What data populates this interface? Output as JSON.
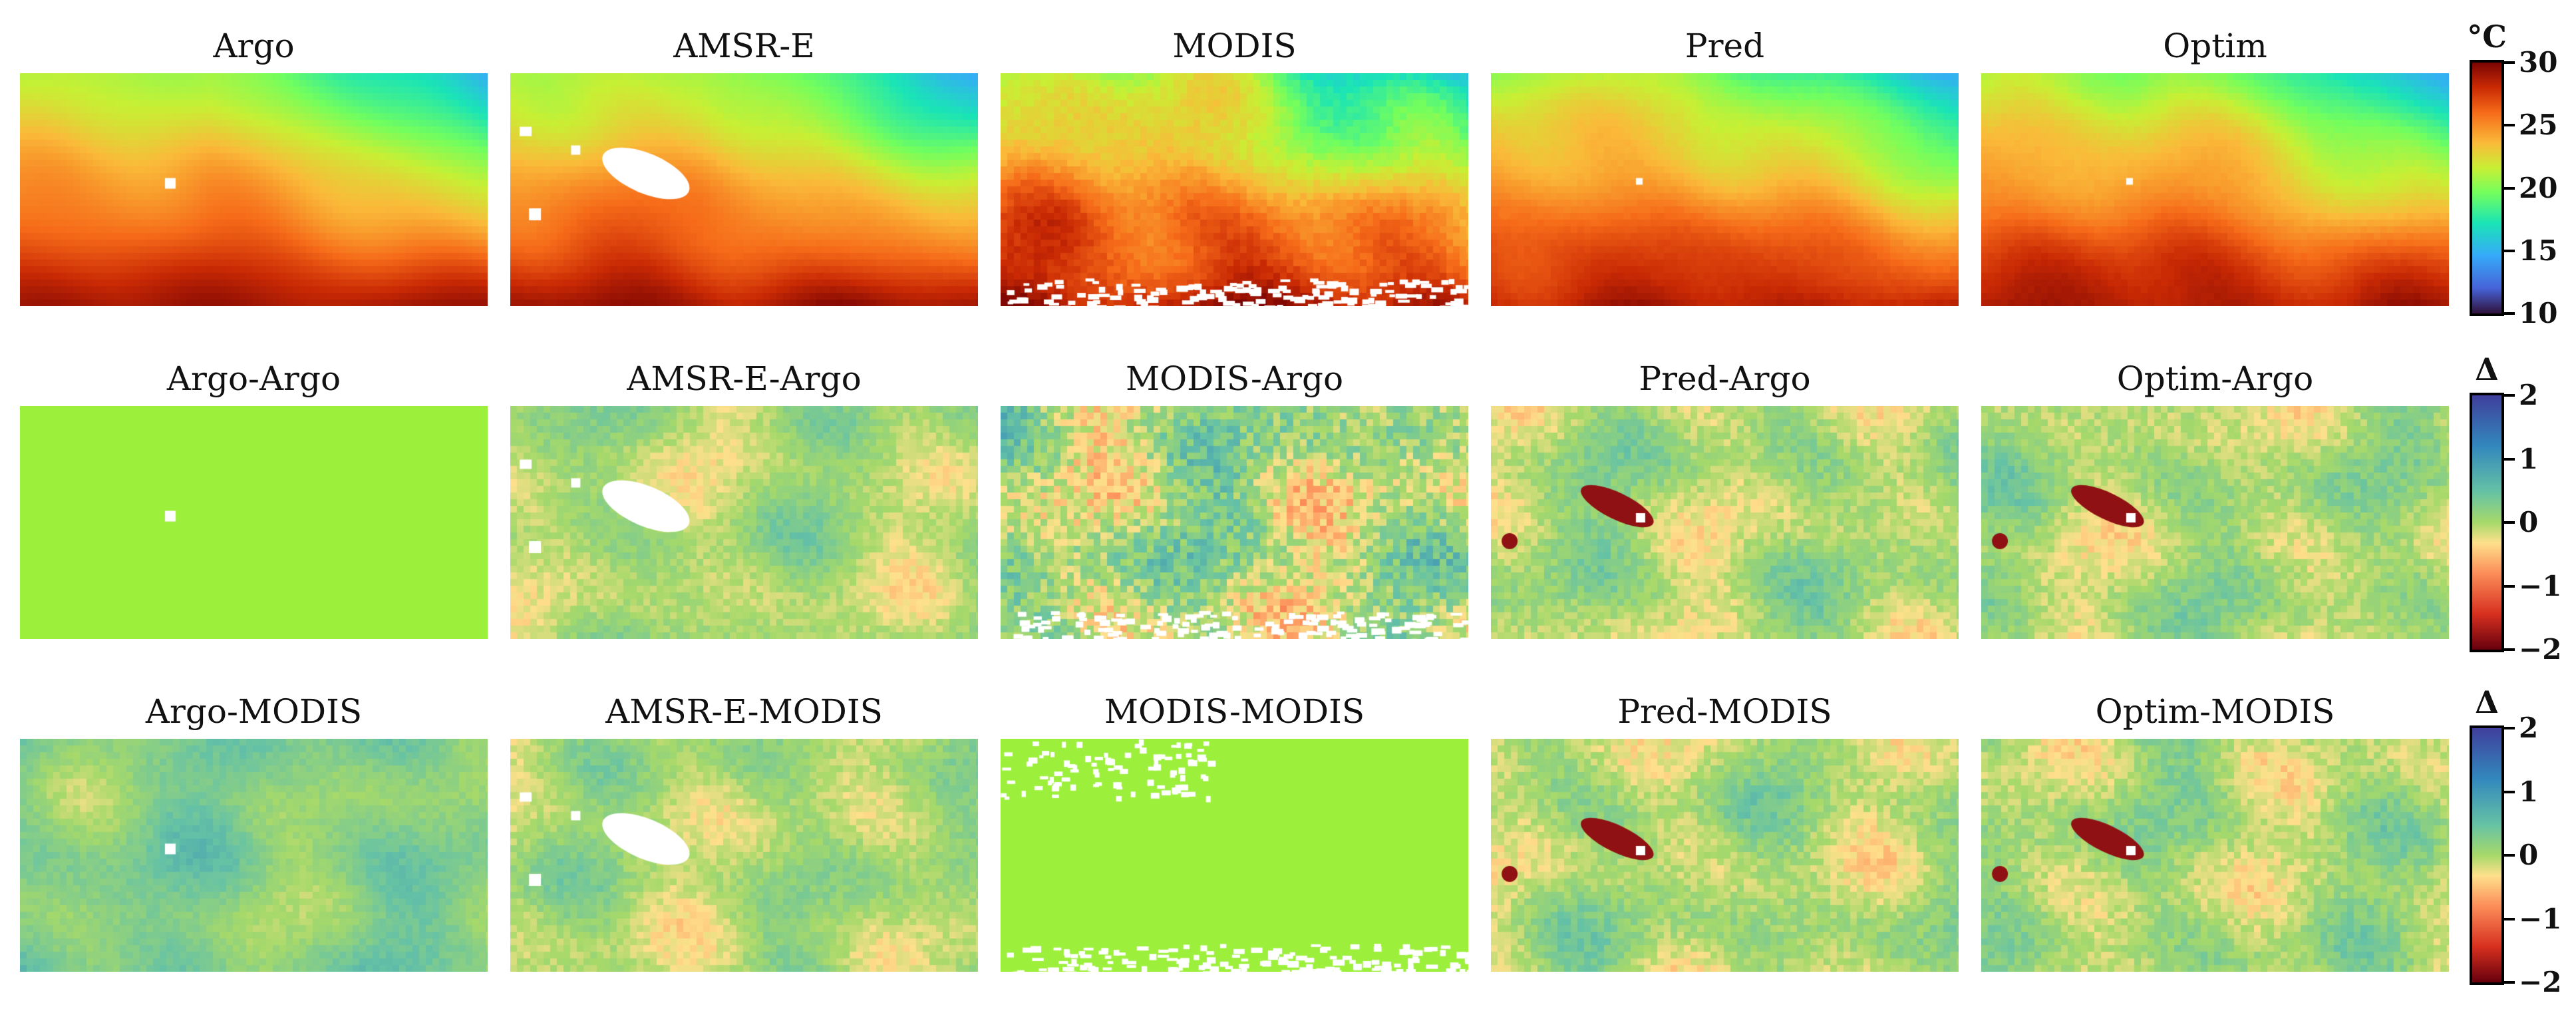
{
  "chart_data": {
    "type": "heatmap",
    "rows": [
      {
        "name": "sst",
        "colormap": "turbo",
        "colorbar_label": "°C",
        "vmin": 10,
        "vmax": 30,
        "ticks": [
          "30",
          "25",
          "20",
          "15",
          "10"
        ],
        "panels": [
          "Argo",
          "AMSR-E",
          "MODIS",
          "Pred",
          "Optim"
        ]
      },
      {
        "name": "diff-argo",
        "colormap": "diverging",
        "colorbar_label": "Δ",
        "vmin": -2,
        "vmax": 2,
        "ticks": [
          "2",
          "1",
          "0",
          "−1",
          "−2"
        ],
        "panels": [
          "Argo-Argo",
          "AMSR-E-Argo",
          "MODIS-Argo",
          "Pred-Argo",
          "Optim-Argo"
        ]
      },
      {
        "name": "diff-modis",
        "colormap": "diverging",
        "colorbar_label": "Δ",
        "vmin": -2,
        "vmax": 2,
        "ticks": [
          "2",
          "1",
          "0",
          "−1",
          "−2"
        ],
        "panels": [
          "Argo-MODIS",
          "AMSR-E-MODIS",
          "MODIS-MODIS",
          "Pred-MODIS",
          "Optim-MODIS"
        ]
      }
    ],
    "colors": {
      "missing": "#ffffff",
      "zero_difference": "#9cef3b"
    }
  }
}
